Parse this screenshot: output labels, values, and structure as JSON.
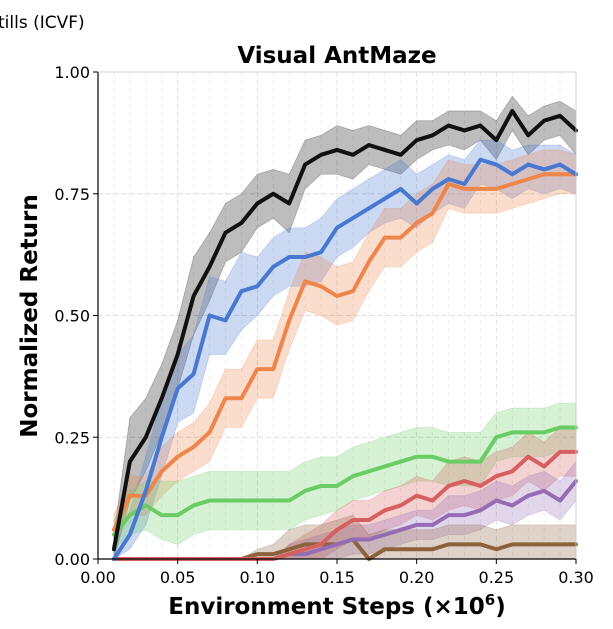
{
  "legend_fragment": "tills (ICVF)",
  "chart_data": {
    "type": "line",
    "title": "Visual AntMaze",
    "xlabel": "Environment Steps (×10",
    "xlabel_exp": "6",
    "xlabel_close": ")",
    "ylabel": "Normalized Return",
    "xlim": [
      0.0,
      0.3
    ],
    "ylim": [
      0.0,
      1.0
    ],
    "x_ticks": [
      0.0,
      0.05,
      0.1,
      0.15,
      0.2,
      0.25,
      0.3
    ],
    "x_tick_labels": [
      "0.00",
      "0.05",
      "0.10",
      "0.15",
      "0.20",
      "0.25",
      "0.30"
    ],
    "y_ticks": [
      0.0,
      0.25,
      0.5,
      0.75,
      1.0
    ],
    "y_tick_labels": [
      "0.00",
      "0.25",
      "0.50",
      "0.75",
      "1.00"
    ],
    "grid": true,
    "x": [
      0.01,
      0.02,
      0.03,
      0.04,
      0.05,
      0.06,
      0.07,
      0.08,
      0.09,
      0.1,
      0.11,
      0.12,
      0.13,
      0.14,
      0.15,
      0.16,
      0.17,
      0.18,
      0.19,
      0.2,
      0.21,
      0.22,
      0.23,
      0.24,
      0.25,
      0.26,
      0.27,
      0.28,
      0.29,
      0.3
    ],
    "series": [
      {
        "color": "#111111",
        "values": [
          0.02,
          0.2,
          0.25,
          0.33,
          0.42,
          0.54,
          0.6,
          0.67,
          0.69,
          0.73,
          0.75,
          0.73,
          0.81,
          0.83,
          0.84,
          0.83,
          0.85,
          0.84,
          0.83,
          0.86,
          0.87,
          0.89,
          0.88,
          0.89,
          0.86,
          0.92,
          0.87,
          0.9,
          0.91,
          0.88
        ],
        "lower": [
          0.0,
          0.12,
          0.18,
          0.26,
          0.35,
          0.46,
          0.53,
          0.61,
          0.63,
          0.68,
          0.7,
          0.67,
          0.76,
          0.79,
          0.79,
          0.78,
          0.81,
          0.8,
          0.79,
          0.82,
          0.84,
          0.85,
          0.84,
          0.86,
          0.82,
          0.88,
          0.83,
          0.86,
          0.87,
          0.83
        ],
        "upper": [
          0.05,
          0.29,
          0.33,
          0.4,
          0.49,
          0.62,
          0.67,
          0.73,
          0.75,
          0.79,
          0.8,
          0.79,
          0.86,
          0.87,
          0.89,
          0.88,
          0.89,
          0.88,
          0.87,
          0.9,
          0.9,
          0.92,
          0.92,
          0.92,
          0.9,
          0.95,
          0.91,
          0.93,
          0.94,
          0.92
        ]
      },
      {
        "color": "#4878d0",
        "values": [
          0.0,
          0.05,
          0.14,
          0.25,
          0.35,
          0.38,
          0.5,
          0.49,
          0.55,
          0.56,
          0.6,
          0.62,
          0.62,
          0.63,
          0.68,
          0.7,
          0.72,
          0.74,
          0.76,
          0.73,
          0.76,
          0.78,
          0.77,
          0.82,
          0.81,
          0.79,
          0.81,
          0.8,
          0.81,
          0.79
        ],
        "lower": [
          0.0,
          0.02,
          0.07,
          0.17,
          0.28,
          0.3,
          0.42,
          0.42,
          0.47,
          0.5,
          0.54,
          0.56,
          0.56,
          0.57,
          0.62,
          0.64,
          0.67,
          0.69,
          0.7,
          0.68,
          0.71,
          0.73,
          0.72,
          0.77,
          0.76,
          0.74,
          0.76,
          0.75,
          0.76,
          0.75
        ],
        "upper": [
          0.02,
          0.1,
          0.21,
          0.33,
          0.42,
          0.46,
          0.58,
          0.57,
          0.63,
          0.62,
          0.66,
          0.68,
          0.68,
          0.7,
          0.74,
          0.76,
          0.78,
          0.8,
          0.82,
          0.79,
          0.81,
          0.83,
          0.82,
          0.86,
          0.86,
          0.84,
          0.85,
          0.85,
          0.85,
          0.83
        ]
      },
      {
        "color": "#ee854a",
        "values": [
          0.06,
          0.13,
          0.13,
          0.18,
          0.21,
          0.23,
          0.26,
          0.33,
          0.33,
          0.39,
          0.39,
          0.49,
          0.57,
          0.56,
          0.54,
          0.55,
          0.61,
          0.66,
          0.66,
          0.69,
          0.71,
          0.77,
          0.76,
          0.76,
          0.76,
          0.77,
          0.78,
          0.79,
          0.79,
          0.79
        ],
        "lower": [
          0.03,
          0.09,
          0.09,
          0.13,
          0.16,
          0.18,
          0.2,
          0.27,
          0.27,
          0.33,
          0.33,
          0.43,
          0.51,
          0.5,
          0.48,
          0.49,
          0.55,
          0.6,
          0.6,
          0.63,
          0.65,
          0.72,
          0.71,
          0.71,
          0.71,
          0.72,
          0.73,
          0.74,
          0.75,
          0.75
        ],
        "upper": [
          0.09,
          0.17,
          0.17,
          0.23,
          0.26,
          0.28,
          0.32,
          0.39,
          0.39,
          0.45,
          0.45,
          0.55,
          0.63,
          0.62,
          0.6,
          0.61,
          0.67,
          0.72,
          0.72,
          0.75,
          0.77,
          0.82,
          0.81,
          0.81,
          0.81,
          0.82,
          0.83,
          0.84,
          0.84,
          0.83
        ]
      },
      {
        "color": "#6acc64",
        "values": [
          0.05,
          0.09,
          0.11,
          0.09,
          0.09,
          0.11,
          0.12,
          0.12,
          0.12,
          0.12,
          0.12,
          0.12,
          0.14,
          0.15,
          0.15,
          0.17,
          0.18,
          0.19,
          0.2,
          0.21,
          0.21,
          0.2,
          0.2,
          0.2,
          0.25,
          0.26,
          0.26,
          0.26,
          0.27,
          0.27
        ],
        "lower": [
          0.02,
          0.05,
          0.06,
          0.04,
          0.03,
          0.05,
          0.06,
          0.06,
          0.06,
          0.06,
          0.06,
          0.06,
          0.08,
          0.09,
          0.1,
          0.12,
          0.13,
          0.14,
          0.15,
          0.16,
          0.16,
          0.15,
          0.15,
          0.15,
          0.2,
          0.21,
          0.21,
          0.21,
          0.22,
          0.22
        ],
        "upper": [
          0.08,
          0.14,
          0.16,
          0.16,
          0.16,
          0.17,
          0.18,
          0.18,
          0.18,
          0.18,
          0.18,
          0.18,
          0.2,
          0.21,
          0.21,
          0.23,
          0.24,
          0.25,
          0.26,
          0.27,
          0.27,
          0.26,
          0.26,
          0.26,
          0.3,
          0.31,
          0.31,
          0.31,
          0.32,
          0.32
        ]
      },
      {
        "color": "#d65f5f",
        "values": [
          0.0,
          0.0,
          0.0,
          0.0,
          0.0,
          0.0,
          0.0,
          0.0,
          0.0,
          0.0,
          0.0,
          0.01,
          0.02,
          0.03,
          0.06,
          0.08,
          0.08,
          0.1,
          0.11,
          0.13,
          0.12,
          0.15,
          0.16,
          0.15,
          0.17,
          0.18,
          0.21,
          0.19,
          0.22,
          0.22
        ],
        "lower": [
          0.0,
          0.0,
          0.0,
          0.0,
          0.0,
          0.0,
          0.0,
          0.0,
          0.0,
          0.0,
          0.0,
          0.0,
          0.0,
          0.0,
          0.02,
          0.04,
          0.04,
          0.06,
          0.07,
          0.09,
          0.08,
          0.1,
          0.11,
          0.1,
          0.12,
          0.13,
          0.16,
          0.14,
          0.17,
          0.17
        ],
        "upper": [
          0.0,
          0.0,
          0.0,
          0.0,
          0.0,
          0.0,
          0.0,
          0.0,
          0.0,
          0.0,
          0.0,
          0.03,
          0.05,
          0.07,
          0.1,
          0.12,
          0.12,
          0.14,
          0.15,
          0.17,
          0.16,
          0.2,
          0.21,
          0.2,
          0.22,
          0.23,
          0.26,
          0.24,
          0.27,
          0.27
        ]
      },
      {
        "color": "#956cb4",
        "values": [
          0.0,
          0.0,
          0.0,
          0.0,
          0.0,
          0.0,
          0.0,
          0.0,
          0.0,
          0.0,
          0.0,
          0.01,
          0.01,
          0.02,
          0.03,
          0.04,
          0.04,
          0.05,
          0.06,
          0.07,
          0.07,
          0.09,
          0.09,
          0.1,
          0.12,
          0.11,
          0.13,
          0.14,
          0.12,
          0.16
        ],
        "lower": [
          0.0,
          0.0,
          0.0,
          0.0,
          0.0,
          0.0,
          0.0,
          0.0,
          0.0,
          0.0,
          0.0,
          0.0,
          0.0,
          0.0,
          0.0,
          0.01,
          0.01,
          0.02,
          0.03,
          0.04,
          0.04,
          0.05,
          0.05,
          0.06,
          0.08,
          0.07,
          0.09,
          0.1,
          0.08,
          0.12
        ],
        "upper": [
          0.0,
          0.0,
          0.0,
          0.0,
          0.0,
          0.0,
          0.0,
          0.0,
          0.0,
          0.0,
          0.0,
          0.03,
          0.04,
          0.05,
          0.06,
          0.07,
          0.07,
          0.08,
          0.09,
          0.1,
          0.1,
          0.13,
          0.13,
          0.14,
          0.16,
          0.15,
          0.17,
          0.18,
          0.16,
          0.2
        ]
      },
      {
        "color": "#8c613c",
        "values": [
          0.0,
          0.0,
          0.0,
          0.0,
          0.0,
          0.0,
          0.0,
          0.0,
          0.0,
          0.01,
          0.01,
          0.02,
          0.03,
          0.03,
          0.03,
          0.04,
          0.0,
          0.02,
          0.02,
          0.02,
          0.02,
          0.03,
          0.03,
          0.03,
          0.02,
          0.03,
          0.03,
          0.03,
          0.03,
          0.03
        ],
        "lower": [
          0.0,
          0.0,
          0.0,
          0.0,
          0.0,
          0.0,
          0.0,
          0.0,
          0.0,
          0.0,
          0.0,
          0.0,
          0.0,
          0.0,
          0.0,
          0.0,
          0.0,
          0.0,
          0.0,
          0.0,
          0.0,
          0.0,
          0.0,
          0.0,
          0.0,
          0.0,
          0.0,
          0.0,
          0.0,
          0.0
        ],
        "upper": [
          0.0,
          0.0,
          0.0,
          0.0,
          0.0,
          0.0,
          0.0,
          0.0,
          0.0,
          0.02,
          0.03,
          0.06,
          0.07,
          0.07,
          0.08,
          0.09,
          0.05,
          0.06,
          0.06,
          0.06,
          0.06,
          0.07,
          0.07,
          0.07,
          0.06,
          0.07,
          0.07,
          0.07,
          0.07,
          0.07
        ]
      }
    ]
  }
}
